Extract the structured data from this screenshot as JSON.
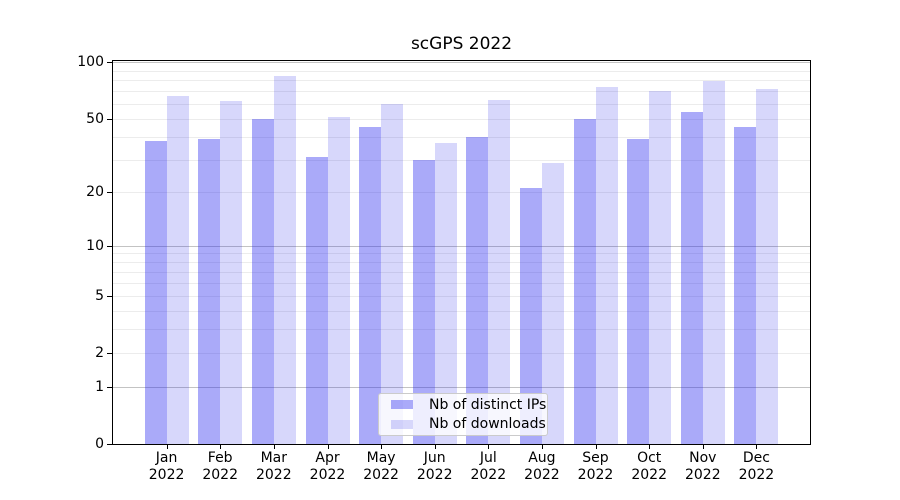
{
  "chart_data": {
    "type": "bar",
    "title": "scGPS 2022",
    "categories": [
      "Jan",
      "Feb",
      "Mar",
      "Apr",
      "May",
      "Jun",
      "Jul",
      "Aug",
      "Sep",
      "Oct",
      "Nov",
      "Dec"
    ],
    "category_year": "2022",
    "series": [
      {
        "name": "Nb of distinct IPs",
        "color_hex": "#a9a9f8",
        "color_rgba": "rgba(32,32,240,0.38)",
        "values": [
          38,
          39,
          50,
          31,
          45,
          30,
          40,
          21,
          50,
          39,
          54,
          45
        ]
      },
      {
        "name": "Nb of downloads",
        "color_hex": "#d8d8f9",
        "color_rgba": "rgba(16,16,232,0.17)",
        "values": [
          66,
          62,
          84,
          51,
          60,
          37,
          63,
          29,
          74,
          70,
          79,
          72
        ]
      }
    ],
    "yscale": "log1p",
    "ylim": [
      0,
      102.5
    ],
    "yticks_labeled": [
      0,
      1,
      2,
      5,
      10,
      20,
      50,
      100
    ],
    "ygrid_major": [
      1,
      10,
      100
    ],
    "ygrid_minor": [
      2,
      3,
      4,
      5,
      6,
      7,
      8,
      9,
      20,
      30,
      40,
      50,
      60,
      70,
      80,
      90
    ],
    "grid": "horizontal, major+minor, on",
    "legend_position": "lower center",
    "xlabel": "",
    "ylabel": ""
  },
  "colors": {
    "background": "#ffffff",
    "spine": "#000000",
    "grid_major": "#c3c3c3",
    "grid_minor": "#ececec",
    "legend_border": "#cbcbcb",
    "legend_background": "rgba(255,255,255,0.8)",
    "text": "#000000"
  }
}
